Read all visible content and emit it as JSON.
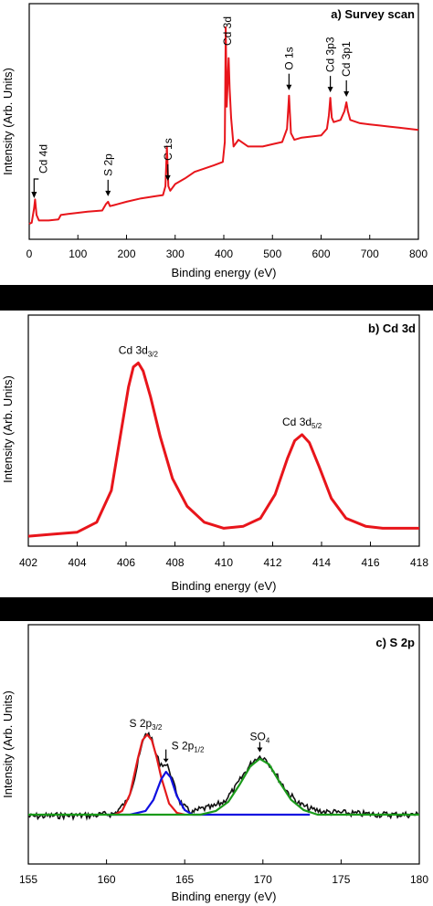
{
  "chart_data": [
    {
      "type": "line",
      "title": "a) Survey scan",
      "xlabel": "Binding energy  (eV)",
      "ylabel": "Intensity (Arb. Units)",
      "xlim": [
        0,
        800
      ],
      "ylim": [
        0,
        100
      ],
      "xticks": [
        "0",
        "100",
        "200",
        "300",
        "400",
        "500",
        "600",
        "700",
        "800"
      ],
      "grid": false,
      "series": [
        {
          "color": "#e8151b",
          "x": [
            0,
            5,
            10,
            12,
            15,
            20,
            40,
            60,
            65,
            80,
            100,
            120,
            150,
            158,
            162,
            166,
            175,
            200,
            230,
            260,
            275,
            280,
            283,
            286,
            290,
            300,
            320,
            340,
            360,
            380,
            398,
            402,
            404,
            406,
            410,
            412,
            415,
            420,
            430,
            450,
            480,
            500,
            520,
            530,
            534,
            538,
            545,
            560,
            580,
            600,
            612,
            616,
            619,
            622,
            626,
            640,
            648,
            652,
            655,
            660,
            680,
            700,
            720,
            740,
            760,
            780,
            800
          ],
          "y": [
            7,
            7.5,
            14,
            18,
            11,
            8.5,
            8.5,
            9,
            11,
            11.5,
            12,
            12.5,
            13,
            16,
            17,
            15,
            15.5,
            17,
            18.5,
            19.5,
            20,
            24,
            42,
            24,
            22,
            25,
            27.5,
            30.5,
            32,
            33.5,
            35,
            44,
            96,
            60,
            82,
            68,
            55,
            42,
            45,
            42,
            42,
            43,
            44,
            50,
            65,
            48,
            45,
            46,
            46.5,
            47,
            50,
            56,
            64,
            55,
            53,
            54,
            58,
            62,
            58,
            54,
            52.5,
            52,
            51.5,
            51,
            50.5,
            50,
            49.5
          ]
        }
      ],
      "annotations": [
        {
          "text": "Cd 4d",
          "x": 10
        },
        {
          "text": "S 2p",
          "x": 162
        },
        {
          "text": "C 1s",
          "x": 285
        },
        {
          "text": "Cd 3d",
          "x": 406
        },
        {
          "text": "O 1s",
          "x": 534
        },
        {
          "text": "Cd 3p3",
          "x": 619
        },
        {
          "text": "Cd 3p1",
          "x": 652
        }
      ]
    },
    {
      "type": "line",
      "title": "b) Cd 3d",
      "xlabel": "Binding energy (eV)",
      "ylabel": "Intensity (Arb. Units)",
      "xlim": [
        402,
        418
      ],
      "ylim": [
        0,
        100
      ],
      "xticks": [
        "402",
        "404",
        "406",
        "408",
        "410",
        "412",
        "414",
        "416",
        "418"
      ],
      "grid": false,
      "series": [
        {
          "color": "#e8151b",
          "x": [
            402,
            403,
            404,
            404.8,
            405.4,
            405.8,
            406.1,
            406.3,
            406.5,
            406.7,
            407,
            407.4,
            407.9,
            408.5,
            409.2,
            410,
            410.8,
            411.5,
            412.1,
            412.6,
            412.9,
            413.2,
            413.5,
            413.9,
            414.4,
            415,
            415.8,
            416.5,
            417.2,
            418
          ],
          "y": [
            5,
            6,
            7,
            12,
            28,
            58,
            80,
            90,
            92,
            88,
            75,
            55,
            34,
            20,
            12,
            9,
            10,
            14,
            26,
            44,
            53,
            56,
            52,
            40,
            24,
            14,
            10,
            9,
            9,
            9
          ]
        }
      ],
      "annotations": [
        {
          "text": "Cd 3d",
          "sub": "3/2",
          "x": 406.5
        },
        {
          "text": "Cd 3d",
          "sub": "5/2",
          "x": 413.2
        }
      ]
    },
    {
      "type": "line",
      "title": "c) S 2p",
      "xlabel": "Binding energy (eV)",
      "ylabel": "Intensity (Arb. Units)",
      "xlim": [
        155,
        180
      ],
      "ylim": [
        0,
        100
      ],
      "xticks": [
        "155",
        "160",
        "165",
        "170",
        "175",
        "180"
      ],
      "grid": false,
      "series": [
        {
          "color": "#111111",
          "x": [
            155,
            157,
            159,
            160.5,
            161.3,
            161.8,
            162.2,
            162.5,
            162.8,
            163.1,
            163.4,
            163.7,
            164,
            164.3,
            164.7,
            165.1,
            165.5,
            166,
            166.8,
            167.5,
            168.2,
            168.8,
            169.3,
            169.6,
            169.9,
            170.2,
            170.6,
            171.1,
            171.7,
            172.3,
            173,
            174,
            175,
            176,
            178,
            180
          ],
          "y": [
            -2,
            -1,
            -1,
            1,
            14,
            40,
            70,
            88,
            85,
            68,
            55,
            54,
            50,
            32,
            14,
            6,
            2,
            6,
            8,
            14,
            28,
            44,
            56,
            61,
            63,
            59,
            50,
            36,
            22,
            12,
            6,
            3,
            2,
            1,
            0,
            0
          ]
        },
        {
          "color": "#e41a1c",
          "x": [
            160.5,
            161,
            161.5,
            162,
            162.3,
            162.6,
            162.9,
            163.2,
            163.5,
            164,
            164.5,
            165
          ],
          "y": [
            0,
            4,
            22,
            60,
            80,
            86,
            80,
            62,
            40,
            12,
            2,
            0
          ]
        },
        {
          "color": "#1010e0",
          "x": [
            160,
            161.5,
            162.5,
            163,
            163.5,
            163.8,
            164.1,
            164.5,
            165,
            165.5,
            173
          ],
          "y": [
            0,
            0,
            4,
            16,
            38,
            46,
            40,
            20,
            5,
            0,
            0
          ]
        },
        {
          "color": "#1a9a1a",
          "x": [
            155,
            166,
            167,
            167.8,
            168.5,
            169.2,
            169.8,
            170.4,
            171.1,
            171.8,
            172.6,
            173.5,
            180
          ],
          "y": [
            0,
            0,
            4,
            14,
            32,
            52,
            60,
            54,
            34,
            16,
            5,
            0,
            0
          ]
        }
      ],
      "annotations": [
        {
          "text": "S 2p",
          "sub": "3/2",
          "x": 162.5
        },
        {
          "text": "S 2p",
          "sub": "1/2",
          "x": 163.8
        },
        {
          "text": "SO",
          "sub": "4",
          "x": 169.8
        }
      ]
    }
  ]
}
